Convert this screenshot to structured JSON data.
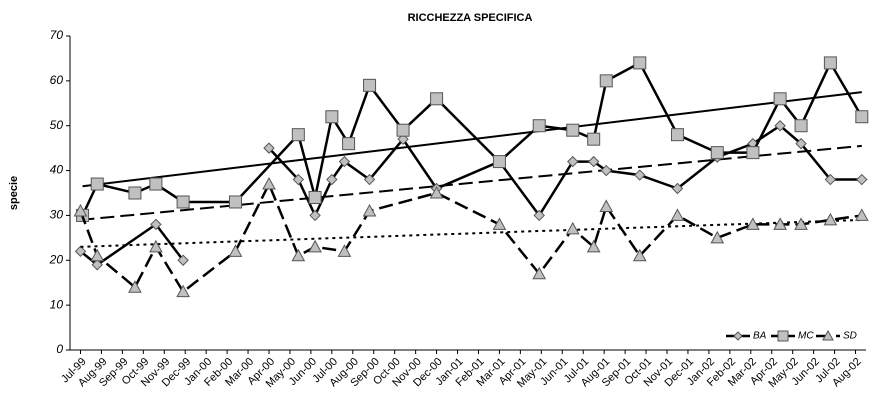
{
  "chart_data": {
    "type": "line",
    "title": "RICCHEZZA SPECIFICA",
    "ylabel": "specie",
    "xlim": [
      -0.5,
      37.5
    ],
    "xticks": [
      {
        "value": 0,
        "label": "Jul-99"
      },
      {
        "value": 1,
        "label": "Aug-99"
      },
      {
        "value": 2,
        "label": "Sep-99"
      },
      {
        "value": 3,
        "label": "Oct-99"
      },
      {
        "value": 4,
        "label": "Nov-99"
      },
      {
        "value": 5,
        "label": "Dec-99"
      },
      {
        "value": 6,
        "label": "Jan-00"
      },
      {
        "value": 7,
        "label": "Feb-00"
      },
      {
        "value": 8,
        "label": "Mar-00"
      },
      {
        "value": 9,
        "label": "Apr-00"
      },
      {
        "value": 10,
        "label": "May-00"
      },
      {
        "value": 11,
        "label": "Jun-00"
      },
      {
        "value": 12,
        "label": "Jul-00"
      },
      {
        "value": 13,
        "label": "Aug-00"
      },
      {
        "value": 14,
        "label": "Sep-00"
      },
      {
        "value": 15,
        "label": "Oct-00"
      },
      {
        "value": 16,
        "label": "Nov-00"
      },
      {
        "value": 17,
        "label": "Dec-00"
      },
      {
        "value": 18,
        "label": "Jan-01"
      },
      {
        "value": 19,
        "label": "Feb-01"
      },
      {
        "value": 20,
        "label": "Mar-01"
      },
      {
        "value": 21,
        "label": "Apr-01"
      },
      {
        "value": 22,
        "label": "May-01"
      },
      {
        "value": 23,
        "label": "Jun-01"
      },
      {
        "value": 24,
        "label": "Jul-01"
      },
      {
        "value": 25,
        "label": "Aug-01"
      },
      {
        "value": 26,
        "label": "Sep-01"
      },
      {
        "value": 27,
        "label": "Oct-01"
      },
      {
        "value": 28,
        "label": "Nov-01"
      },
      {
        "value": 29,
        "label": "Dec-01"
      },
      {
        "value": 30,
        "label": "Jan-02"
      },
      {
        "value": 31,
        "label": "Feb-02"
      },
      {
        "value": 32,
        "label": "Mar-02"
      },
      {
        "value": 33,
        "label": "Apr-02"
      },
      {
        "value": 34,
        "label": "May-02"
      },
      {
        "value": 35,
        "label": "Jun-02"
      },
      {
        "value": 36,
        "label": "Jul-02"
      },
      {
        "value": 37,
        "label": "Aug-02"
      }
    ],
    "ylim": [
      0,
      70
    ],
    "yticks": [
      0,
      10,
      20,
      30,
      40,
      50,
      60,
      70
    ],
    "legend": "bottom-right",
    "series": [
      {
        "name": "BA",
        "color": "#000000",
        "marker": "diamond",
        "dash": "solid",
        "trend_dash": "dashed",
        "x": [
          0.0,
          0.8,
          3.6,
          4.9,
          6.0,
          9.0,
          10.4,
          11.2,
          12.0,
          12.6,
          13.8,
          15.4,
          17.0,
          20.0,
          21.9,
          23.5,
          24.5,
          25.1,
          26.7,
          28.5,
          30.4,
          32.1,
          33.4,
          34.4,
          35.8,
          37.3
        ],
        "values": [
          22,
          19,
          28,
          20,
          null,
          45,
          38,
          30,
          38,
          42,
          38,
          47,
          36,
          42,
          30,
          42,
          42,
          40,
          39,
          36,
          43,
          46,
          50,
          46,
          38,
          38
        ],
        "trend": [
          29,
          45.5
        ]
      },
      {
        "name": "MC",
        "color": "#000000",
        "marker": "square",
        "dash": "solid",
        "trend_dash": "solid",
        "x": [
          0.1,
          0.8,
          2.6,
          3.6,
          4.9,
          7.4,
          10.4,
          11.2,
          12.0,
          12.8,
          13.8,
          15.4,
          17.0,
          20.0,
          21.9,
          23.5,
          24.5,
          25.1,
          26.7,
          28.5,
          30.4,
          32.1,
          33.4,
          34.4,
          35.8,
          37.3
        ],
        "values": [
          30,
          37,
          35,
          37,
          33,
          33,
          48,
          34,
          52,
          46,
          59,
          49,
          56,
          42,
          50,
          49,
          47,
          60,
          64,
          48,
          44,
          44,
          56,
          50,
          64,
          52
        ],
        "trend": [
          36.5,
          57.5
        ]
      },
      {
        "name": "SD",
        "color": "#000000",
        "marker": "triangle",
        "dash": "dashed",
        "trend_dash": "dotted",
        "x": [
          0.0,
          0.8,
          2.6,
          3.6,
          4.9,
          7.4,
          9.0,
          10.4,
          11.2,
          12.6,
          13.8,
          17.0,
          20.0,
          21.9,
          23.5,
          24.5,
          25.1,
          26.7,
          28.5,
          30.4,
          32.1,
          33.4,
          34.4,
          35.8,
          37.3
        ],
        "values": [
          31,
          21,
          14,
          23,
          13,
          22,
          37,
          21,
          23,
          22,
          31,
          35,
          28,
          17,
          27,
          23,
          32,
          21,
          30,
          25,
          28,
          28,
          28,
          29,
          30
        ],
        "trend": [
          23,
          29
        ]
      }
    ]
  }
}
